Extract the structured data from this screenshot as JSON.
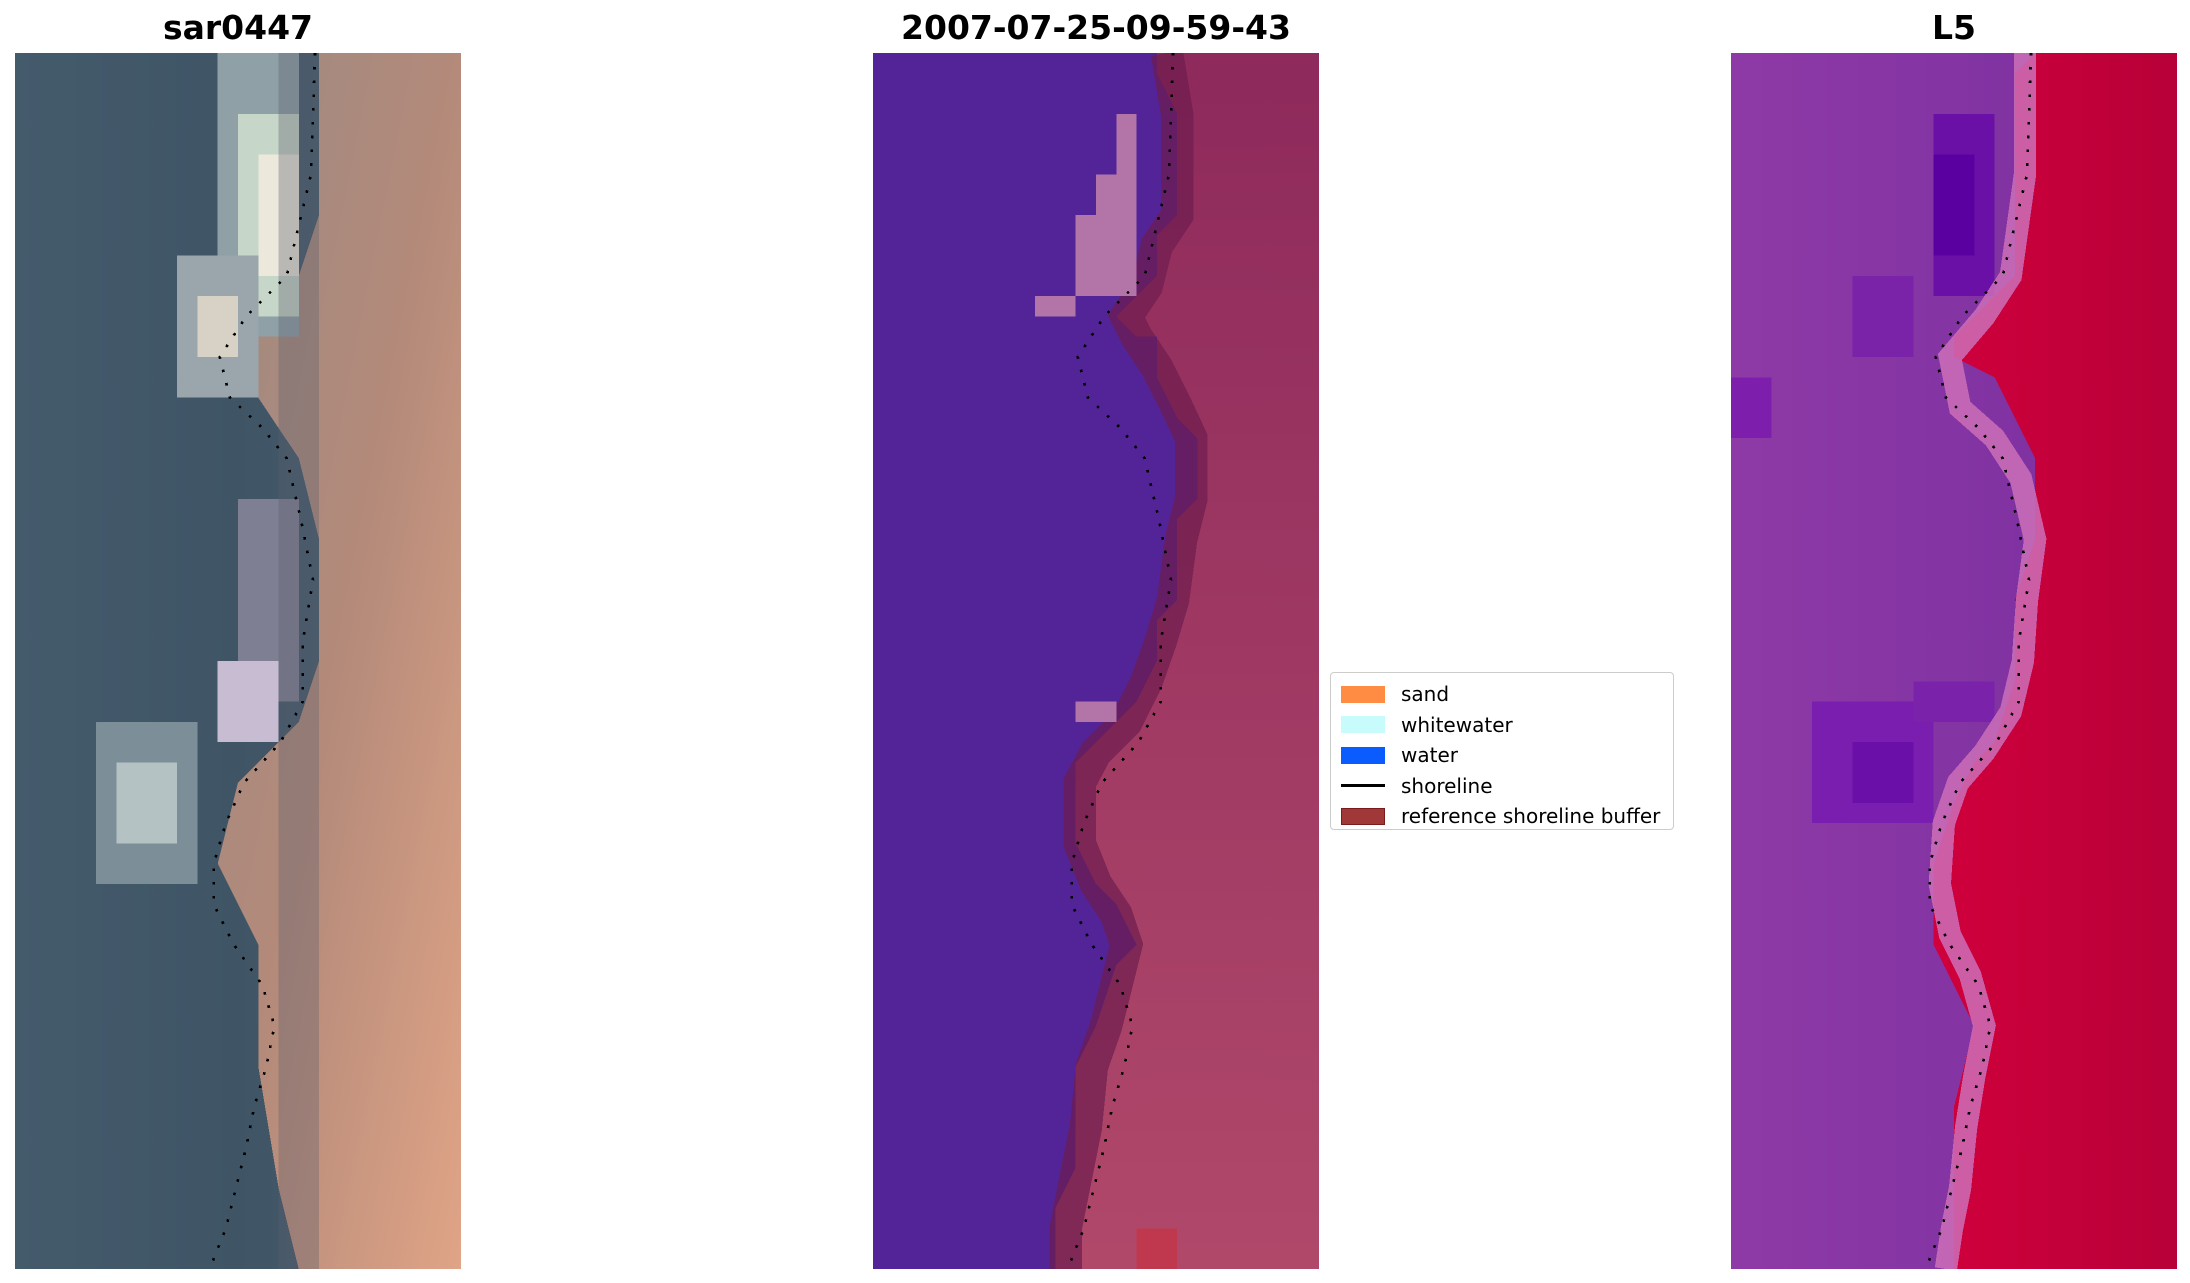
{
  "panels": [
    {
      "title": "sar0447",
      "style": "rgb"
    },
    {
      "title": "2007-07-25-09-59-43",
      "style": "classified"
    },
    {
      "title": "L5",
      "style": "index"
    }
  ],
  "legend": {
    "items": [
      {
        "label": "sand",
        "kind": "patch",
        "color": "#ff8c42"
      },
      {
        "label": "whitewater",
        "kind": "patch",
        "color": "#c8fcfc"
      },
      {
        "label": "water",
        "kind": "patch",
        "color": "#0a5cff"
      },
      {
        "label": "shoreline",
        "kind": "line",
        "color": "#000000"
      },
      {
        "label": "reference shoreline buffer",
        "kind": "patch",
        "color": "#a03838"
      }
    ]
  },
  "colors": {
    "sea_rgb": "#3f5566",
    "land_rgb": "#c48f78",
    "water_class": "#522498",
    "land_class": "#9a2e60",
    "whitewater_class": "#b374a8",
    "sea_index": "#8e3aa6",
    "land_index": "#c20038",
    "shoreline": "#000000"
  }
}
